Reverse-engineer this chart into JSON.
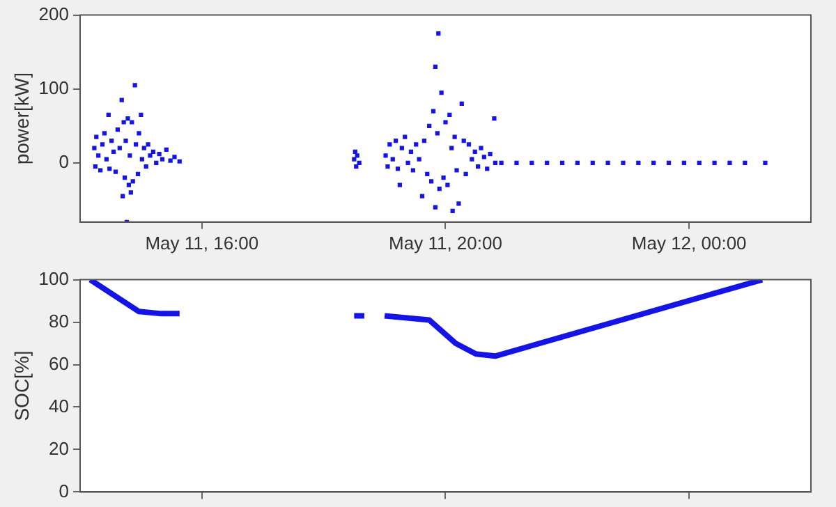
{
  "chart_data": [
    {
      "type": "scatter",
      "ylabel": "power[kW]",
      "marker": "square",
      "xlim": [
        "--05-11T14:00",
        "--05-12T02:00"
      ],
      "xticks": [
        {
          "value": "--05-11T16:00",
          "label": "May 11, 16:00"
        },
        {
          "value": "--05-11T20:00",
          "label": "May 11, 20:00"
        },
        {
          "value": "--05-12T00:00",
          "label": "May 12, 00:00"
        }
      ],
      "ylim": [
        -80,
        200
      ],
      "yticks": [
        0,
        100,
        200
      ],
      "series": [
        {
          "color": "#1414e6",
          "x": [
            "--05-11T14:14",
            "--05-11T14:15",
            "--05-11T14:16",
            "--05-11T14:18",
            "--05-11T14:20",
            "--05-11T14:22",
            "--05-11T14:24",
            "--05-11T14:26",
            "--05-11T14:28",
            "--05-11T14:29",
            "--05-11T14:31",
            "--05-11T14:33",
            "--05-11T14:35",
            "--05-11T14:37",
            "--05-11T14:39",
            "--05-11T14:41",
            "--05-11T14:42",
            "--05-11T14:43",
            "--05-11T14:44",
            "--05-11T14:45",
            "--05-11T14:46",
            "--05-11T14:47",
            "--05-11T14:48",
            "--05-11T14:49",
            "--05-11T14:50",
            "--05-11T14:51",
            "--05-11T14:52",
            "--05-11T14:54",
            "--05-11T14:55",
            "--05-11T14:57",
            "--05-11T14:58",
            "--05-11T15:00",
            "--05-11T15:01",
            "--05-11T15:03",
            "--05-11T15:05",
            "--05-11T15:07",
            "--05-11T15:09",
            "--05-11T15:12",
            "--05-11T15:15",
            "--05-11T15:18",
            "--05-11T15:21",
            "--05-11T15:25",
            "--05-11T15:29",
            "--05-11T15:33",
            "--05-11T15:38",
            "--05-11T18:30",
            "--05-11T18:31",
            "--05-11T18:32",
            "--05-11T18:33",
            "--05-11T18:35",
            "--05-11T19:01",
            "--05-11T19:03",
            "--05-11T19:05",
            "--05-11T19:08",
            "--05-11T19:11",
            "--05-11T19:13",
            "--05-11T19:15",
            "--05-11T19:17",
            "--05-11T19:20",
            "--05-11T19:23",
            "--05-11T19:26",
            "--05-11T19:28",
            "--05-11T19:31",
            "--05-11T19:34",
            "--05-11T19:37",
            "--05-11T19:39",
            "--05-11T19:42",
            "--05-11T19:44",
            "--05-11T19:46",
            "--05-11T19:48",
            "--05-11T19:50",
            "--05-11T19:50",
            "--05-11T19:52",
            "--05-11T19:53",
            "--05-11T19:54",
            "--05-11T19:56",
            "--05-11T19:58",
            "--05-11T20:00",
            "--05-11T20:02",
            "--05-11T20:04",
            "--05-11T20:06",
            "--05-11T20:07",
            "--05-11T20:09",
            "--05-11T20:11",
            "--05-11T20:13",
            "--05-11T20:16",
            "--05-11T20:18",
            "--05-11T20:20",
            "--05-11T20:23",
            "--05-11T20:26",
            "--05-11T20:29",
            "--05-11T20:32",
            "--05-11T20:35",
            "--05-11T20:38",
            "--05-11T20:41",
            "--05-11T20:44",
            "--05-11T20:48",
            "--05-11T20:49",
            "--05-11T20:55",
            "--05-11T21:10",
            "--05-11T21:25",
            "--05-11T21:40",
            "--05-11T21:55",
            "--05-11T22:10",
            "--05-11T22:25",
            "--05-11T22:40",
            "--05-11T22:55",
            "--05-11T23:10",
            "--05-11T23:25",
            "--05-11T23:40",
            "--05-11T23:55",
            "--05-12T00:10",
            "--05-12T00:25",
            "--05-12T00:40",
            "--05-12T00:55",
            "--05-12T01:15"
          ],
          "values": [
            20,
            -5,
            35,
            10,
            -10,
            25,
            40,
            5,
            65,
            -8,
            30,
            15,
            -12,
            45,
            20,
            85,
            -45,
            55,
            -20,
            30,
            -80,
            60,
            -30,
            10,
            -40,
            55,
            -25,
            105,
            25,
            -15,
            40,
            65,
            5,
            20,
            -5,
            25,
            10,
            15,
            0,
            12,
            5,
            18,
            3,
            8,
            2,
            5,
            15,
            -5,
            10,
            0,
            10,
            -5,
            25,
            5,
            30,
            -8,
            -30,
            20,
            35,
            0,
            15,
            -10,
            25,
            5,
            -45,
            30,
            -15,
            50,
            -25,
            70,
            130,
            -60,
            40,
            175,
            -35,
            95,
            -20,
            55,
            -30,
            65,
            20,
            -65,
            35,
            -10,
            -55,
            80,
            30,
            -15,
            25,
            5,
            15,
            -5,
            20,
            8,
            -8,
            12,
            60,
            0,
            0,
            0,
            0,
            0,
            0,
            0,
            0,
            0,
            0,
            0,
            0,
            0,
            0,
            0,
            0,
            0,
            0,
            0
          ]
        }
      ]
    },
    {
      "type": "line",
      "ylabel": "SOC[%]",
      "marker": "none",
      "tick_labels": "y",
      "xlim": [
        "--05-11T14:00",
        "--05-12T02:00"
      ],
      "xticks": [
        {
          "value": "--05-11T16:00",
          "label": "May 11, 16:00"
        },
        {
          "value": "--05-11T20:00",
          "label": "May 11, 20:00"
        },
        {
          "value": "--05-12T00:00",
          "label": "May 12, 00:00"
        }
      ],
      "ylim": [
        0,
        100
      ],
      "yticks": [
        0,
        20,
        40,
        60,
        80,
        100
      ],
      "series": [
        {
          "color": "#1414e6",
          "x": [
            "--05-11T14:10",
            "--05-11T14:58",
            "--05-11T15:20",
            "--05-11T15:38",
            "--05-11T16:30",
            "--05-11T18:30",
            "--05-11T18:40",
            "--05-11T18:50",
            "--05-11T19:00",
            "--05-11T19:44",
            "--05-11T20:10",
            "--05-11T20:30",
            "--05-11T20:49",
            "--05-12T01:12"
          ],
          "values": [
            100,
            85,
            84,
            84,
            null,
            83,
            83,
            null,
            83,
            81,
            70,
            65,
            64,
            100
          ]
        }
      ]
    }
  ]
}
